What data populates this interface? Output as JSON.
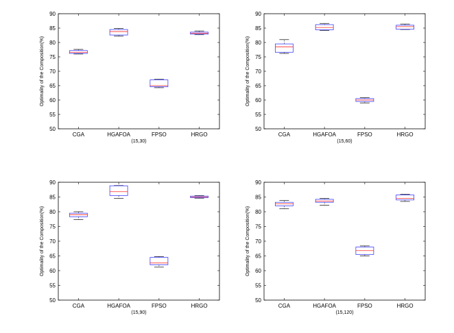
{
  "colors": {
    "box": "#3b3bff",
    "median": "#ff2a2a",
    "whisker": "#222222",
    "axis": "#000000"
  },
  "chart_data": [
    {
      "type": "box",
      "subtitle": "(15,30)",
      "ylabel": "Optimality of the Composition(%)",
      "ylim": [
        50,
        90
      ],
      "yticks": [
        50,
        55,
        60,
        65,
        70,
        75,
        80,
        85,
        90
      ],
      "categories": [
        "CGA",
        "HGAFOA",
        "FPSO",
        "HRGO"
      ],
      "boxes": [
        {
          "min": 76.0,
          "q1": 76.2,
          "median": 76.6,
          "q3": 77.2,
          "max": 77.6
        },
        {
          "min": 82.2,
          "q1": 82.6,
          "median": 83.8,
          "q3": 84.5,
          "max": 84.9
        },
        {
          "min": 64.3,
          "q1": 64.6,
          "median": 65.0,
          "q3": 67.0,
          "max": 67.2
        },
        {
          "min": 82.7,
          "q1": 82.9,
          "median": 83.2,
          "q3": 83.6,
          "max": 84.0
        }
      ]
    },
    {
      "type": "box",
      "subtitle": "(15,60)",
      "ylabel": "Optimality of the Composition(%)",
      "ylim": [
        50,
        90
      ],
      "yticks": [
        50,
        55,
        60,
        65,
        70,
        75,
        80,
        85,
        90
      ],
      "categories": [
        "CGA",
        "HGAFOA",
        "FPSO",
        "HRGO"
      ],
      "boxes": [
        {
          "min": 76.2,
          "q1": 76.6,
          "median": 78.5,
          "q3": 79.5,
          "max": 81.0
        },
        {
          "min": 84.2,
          "q1": 84.4,
          "median": 85.2,
          "q3": 86.2,
          "max": 86.6
        },
        {
          "min": 59.0,
          "q1": 59.5,
          "median": 60.0,
          "q3": 60.5,
          "max": 60.8
        },
        {
          "min": 84.5,
          "q1": 84.6,
          "median": 85.5,
          "q3": 86.0,
          "max": 86.4
        }
      ]
    },
    {
      "type": "box",
      "subtitle": "(15,90)",
      "ylabel": "Optimality of the Composition(%)",
      "ylim": [
        50,
        90
      ],
      "yticks": [
        50,
        55,
        60,
        65,
        70,
        75,
        80,
        85,
        90
      ],
      "categories": [
        "CGA",
        "HGAFOA",
        "FPSO",
        "HRGO"
      ],
      "boxes": [
        {
          "min": 77.3,
          "q1": 78.3,
          "median": 79.0,
          "q3": 79.5,
          "max": 80.0
        },
        {
          "min": 84.5,
          "q1": 85.5,
          "median": 86.8,
          "q3": 88.8,
          "max": 88.9
        },
        {
          "min": 61.2,
          "q1": 62.0,
          "median": 62.6,
          "q3": 64.5,
          "max": 64.8
        },
        {
          "min": 84.6,
          "q1": 84.8,
          "median": 85.0,
          "q3": 85.3,
          "max": 85.5
        }
      ]
    },
    {
      "type": "box",
      "subtitle": "(15,120)",
      "ylabel": "Optimality of the Composition(%)",
      "ylim": [
        50,
        90
      ],
      "yticks": [
        50,
        55,
        60,
        65,
        70,
        75,
        80,
        85,
        90
      ],
      "categories": [
        "CGA",
        "HGAFOA",
        "FPSO",
        "HRGO"
      ],
      "boxes": [
        {
          "min": 81.0,
          "q1": 82.0,
          "median": 82.7,
          "q3": 83.2,
          "max": 83.8
        },
        {
          "min": 82.2,
          "q1": 83.2,
          "median": 83.6,
          "q3": 84.2,
          "max": 84.5
        },
        {
          "min": 65.0,
          "q1": 65.5,
          "median": 66.8,
          "q3": 68.0,
          "max": 68.4
        },
        {
          "min": 83.5,
          "q1": 84.0,
          "median": 84.5,
          "q3": 85.7,
          "max": 85.9
        }
      ]
    }
  ]
}
